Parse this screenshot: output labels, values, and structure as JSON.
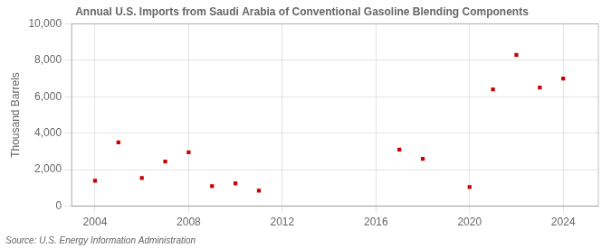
{
  "chart_data": {
    "type": "scatter",
    "title": "Annual U.S. Imports from Saudi Arabia of Conventional Gasoline Blending Components",
    "ylabel": "Thousand Barrels",
    "annotations": [
      "Source: U.S. Energy Information Administration"
    ],
    "x": [
      2004,
      2005,
      2006,
      2007,
      2008,
      2009,
      2010,
      2011,
      2017,
      2018,
      2020,
      2021,
      2022,
      2023,
      2024
    ],
    "values": [
      1400,
      3500,
      1550,
      2450,
      2950,
      1100,
      1250,
      850,
      3100,
      2600,
      1050,
      6400,
      8300,
      6500,
      7000
    ],
    "color": "#cc0000",
    "marker": "square",
    "xlim": [
      2003,
      2025.5
    ],
    "xticks": [
      2004,
      2008,
      2012,
      2016,
      2020,
      2024
    ],
    "ylim": [
      0,
      10000
    ],
    "yticks": [
      0,
      {
        "value": 2000,
        "label": "2,000"
      },
      {
        "value": 4000,
        "label": "4,000"
      },
      {
        "value": 6000,
        "label": "6,000"
      },
      {
        "value": 8000,
        "label": "8,000"
      },
      {
        "value": 10000,
        "label": "10,000"
      }
    ],
    "grid": true
  }
}
